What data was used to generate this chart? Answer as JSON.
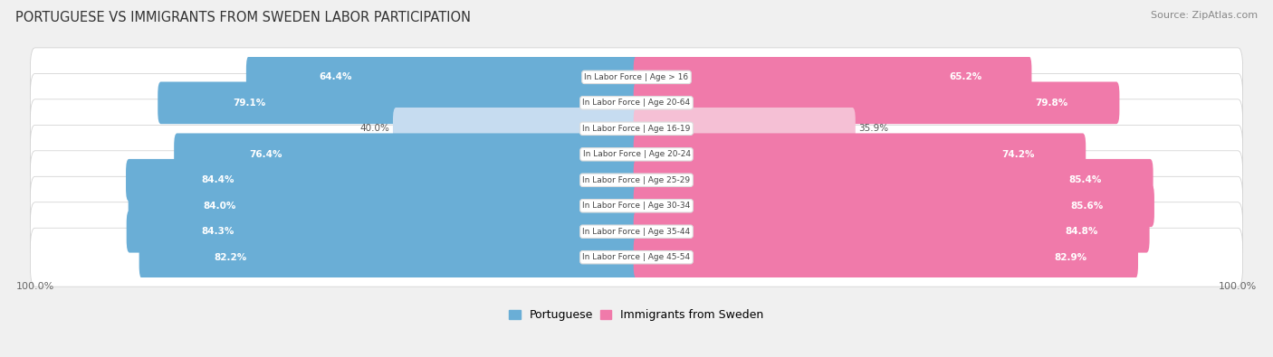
{
  "title": "PORTUGUESE VS IMMIGRANTS FROM SWEDEN LABOR PARTICIPATION",
  "source": "Source: ZipAtlas.com",
  "categories": [
    "In Labor Force | Age > 16",
    "In Labor Force | Age 20-64",
    "In Labor Force | Age 16-19",
    "In Labor Force | Age 20-24",
    "In Labor Force | Age 25-29",
    "In Labor Force | Age 30-34",
    "In Labor Force | Age 35-44",
    "In Labor Force | Age 45-54"
  ],
  "portuguese_values": [
    64.4,
    79.1,
    40.0,
    76.4,
    84.4,
    84.0,
    84.3,
    82.2
  ],
  "sweden_values": [
    65.2,
    79.8,
    35.9,
    74.2,
    85.4,
    85.6,
    84.8,
    82.9
  ],
  "portuguese_color": "#6aaed6",
  "portuguese_color_light": "#c6dcf0",
  "sweden_color": "#f07aaa",
  "sweden_color_light": "#f5c0d5",
  "bg_color": "#f0f0f0",
  "row_bg_color": "#e8e8e8",
  "bar_height": 0.68,
  "max_value": 100.0,
  "figsize": [
    14.06,
    3.95
  ],
  "dpi": 100,
  "legend_labels": [
    "Portuguese",
    "Immigrants from Sweden"
  ]
}
